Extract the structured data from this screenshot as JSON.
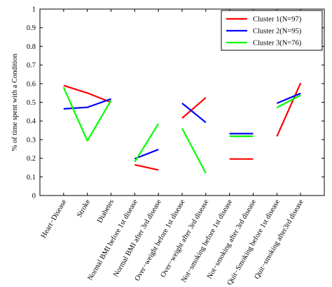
{
  "chart_data": {
    "type": "line",
    "ylabel": "% of time spent with a Condition",
    "ylim": [
      0,
      1
    ],
    "yticks": [
      0,
      0.1,
      0.2,
      0.3,
      0.4,
      0.5,
      0.6,
      0.7,
      0.8,
      0.9,
      1
    ],
    "categories": [
      "Heart−Disease",
      "Stroke",
      "Diabetes",
      "Normal BMI before 1st disease",
      "Normal BMI after 3rd disease",
      "Over−weight before 1st disease",
      "Over−weight after 3rd disease",
      "Not−smoking before 1st disease",
      "Not−smoking after 3rd disease",
      "Quit−Smoking before 1st disease",
      "Quit−smoking after3rd disease"
    ],
    "segments": [
      [
        0,
        1,
        2
      ],
      [
        3,
        4
      ],
      [
        5,
        6
      ],
      [
        7,
        8
      ],
      [
        9,
        10
      ]
    ],
    "series": [
      {
        "name": "Cluster 1(N=97)",
        "color": "#ff0000",
        "values": [
          0.59,
          0.55,
          0.5,
          0.165,
          0.137,
          0.415,
          0.525,
          0.196,
          0.196,
          0.317,
          0.603
        ]
      },
      {
        "name": "Cluster 2(N=95)",
        "color": "#0000ff",
        "values": [
          0.465,
          0.473,
          0.518,
          0.197,
          0.247,
          0.495,
          0.392,
          0.332,
          0.332,
          0.495,
          0.548
        ]
      },
      {
        "name": "Cluster 3(N=76)",
        "color": "#00ff00",
        "values": [
          0.58,
          0.294,
          0.51,
          0.18,
          0.385,
          0.36,
          0.12,
          0.318,
          0.318,
          0.472,
          0.538
        ]
      }
    ],
    "legend": {
      "position": "top-right"
    },
    "grid": false
  }
}
